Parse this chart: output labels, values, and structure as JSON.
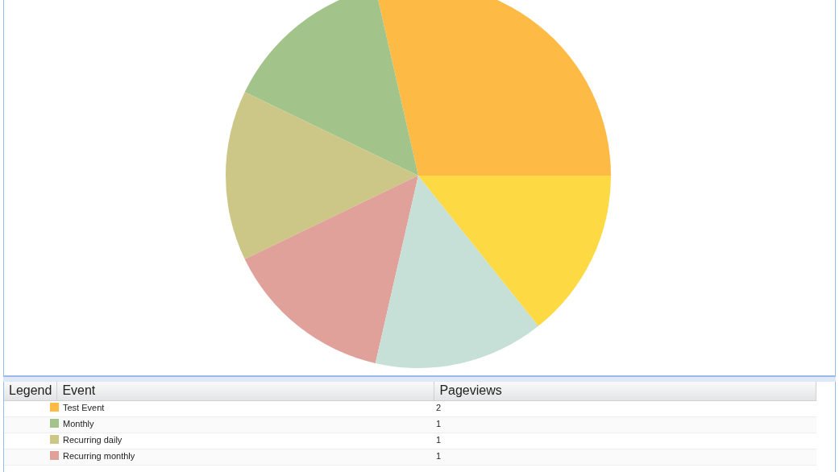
{
  "chart_data": {
    "type": "pie",
    "legend_title": "Legend",
    "xlabel": "Event",
    "ylabel": "Pageviews",
    "categories": [
      "Test Event",
      "Monthly",
      "Recurring daily",
      "Recurring monthly",
      null,
      null
    ],
    "values": [
      2,
      1,
      1,
      1,
      1,
      1
    ],
    "colors": [
      "#fdba45",
      "#a2c48a",
      "#ccc786",
      "#dfa19a",
      "#c6dfd7",
      "#fdda44"
    ],
    "value_labels": [
      "2",
      "1",
      "1",
      "1",
      null,
      null
    ],
    "legend": "bottom"
  }
}
